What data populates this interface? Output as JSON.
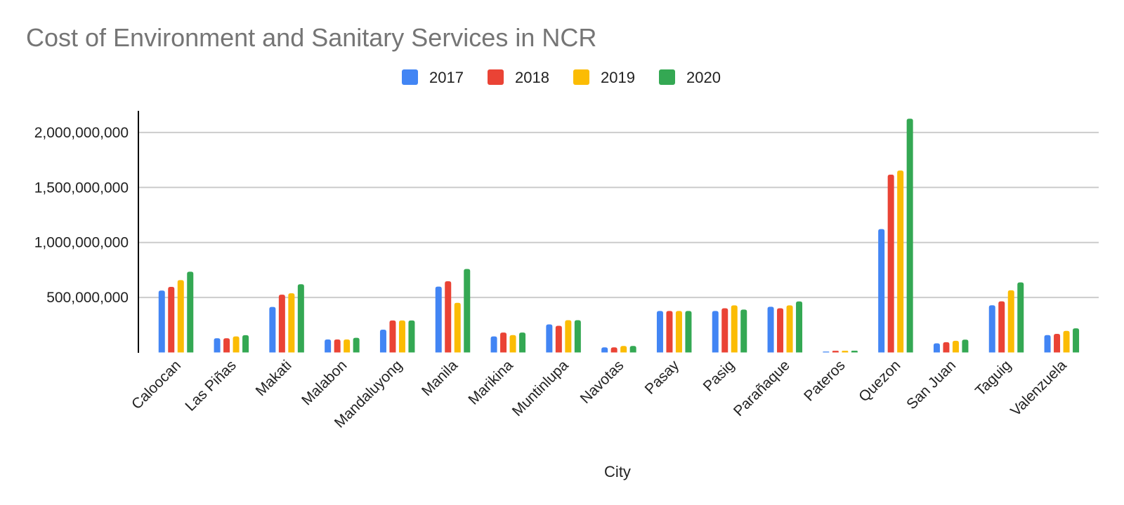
{
  "chart_data": {
    "type": "bar",
    "title": "Cost of Environment and Sanitary Services in NCR",
    "xlabel": "City",
    "ylabel": "",
    "ylim": [
      0,
      2200000000
    ],
    "yticks": [
      500000000,
      1000000000,
      1500000000,
      2000000000
    ],
    "ytick_labels": [
      "500,000,000",
      "1,000,000,000",
      "1,500,000,000",
      "2,000,000,000"
    ],
    "grid": true,
    "legend_position": "top-center",
    "categories": [
      "Caloocan",
      "Las Piñas",
      "Makati",
      "Malabon",
      "Mandaluyong",
      "Manila",
      "Marikina",
      "Muntinlupa",
      "Navotas",
      "Pasay",
      "Pasig",
      "Parañaque",
      "Pateros",
      "Quezon",
      "San Juan",
      "Taguig",
      "Valenzuela"
    ],
    "series": [
      {
        "name": "2017",
        "color": "#4285F4",
        "values": [
          563000000,
          129000000,
          414000000,
          118000000,
          207000000,
          599000000,
          146000000,
          255000000,
          46000000,
          377000000,
          377000000,
          415000000,
          8000000,
          1122000000,
          83000000,
          429000000,
          158000000
        ]
      },
      {
        "name": "2018",
        "color": "#EA4335",
        "values": [
          596000000,
          129000000,
          525000000,
          118000000,
          291000000,
          647000000,
          181000000,
          242000000,
          46000000,
          377000000,
          402000000,
          402000000,
          15000000,
          1617000000,
          93000000,
          465000000,
          169000000
        ]
      },
      {
        "name": "2019",
        "color": "#FBBC04",
        "values": [
          658000000,
          146000000,
          538000000,
          118000000,
          291000000,
          451000000,
          158000000,
          293000000,
          59000000,
          377000000,
          428000000,
          428000000,
          15000000,
          1654000000,
          106000000,
          565000000,
          196000000
        ]
      },
      {
        "name": "2020",
        "color": "#34A853",
        "values": [
          734000000,
          157000000,
          620000000,
          133000000,
          291000000,
          759000000,
          181000000,
          293000000,
          59000000,
          377000000,
          390000000,
          464000000,
          16000000,
          2125000000,
          116000000,
          637000000,
          219000000
        ]
      }
    ]
  }
}
